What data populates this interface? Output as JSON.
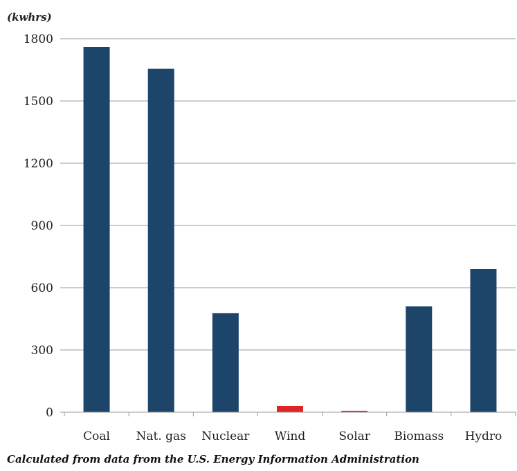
{
  "chart_data": {
    "type": "bar",
    "unit_label": "(kwhrs)",
    "categories": [
      "Coal",
      "Nat. gas",
      "Nuclear",
      "Wind",
      "Solar",
      "Biomass",
      "Hydro"
    ],
    "values": [
      1760,
      1655,
      477,
      30,
      7,
      510,
      690
    ],
    "bar_colors": [
      "#1d4469",
      "#1d4469",
      "#1d4469",
      "#e02424",
      "#e02424",
      "#1d4469",
      "#1d4469"
    ],
    "yticks": [
      0,
      300,
      600,
      900,
      1200,
      1500,
      1800
    ],
    "ylim": [
      0,
      1800
    ],
    "grid": true,
    "caption": "Calculated from data from the U.S. Energy Information Administration"
  }
}
